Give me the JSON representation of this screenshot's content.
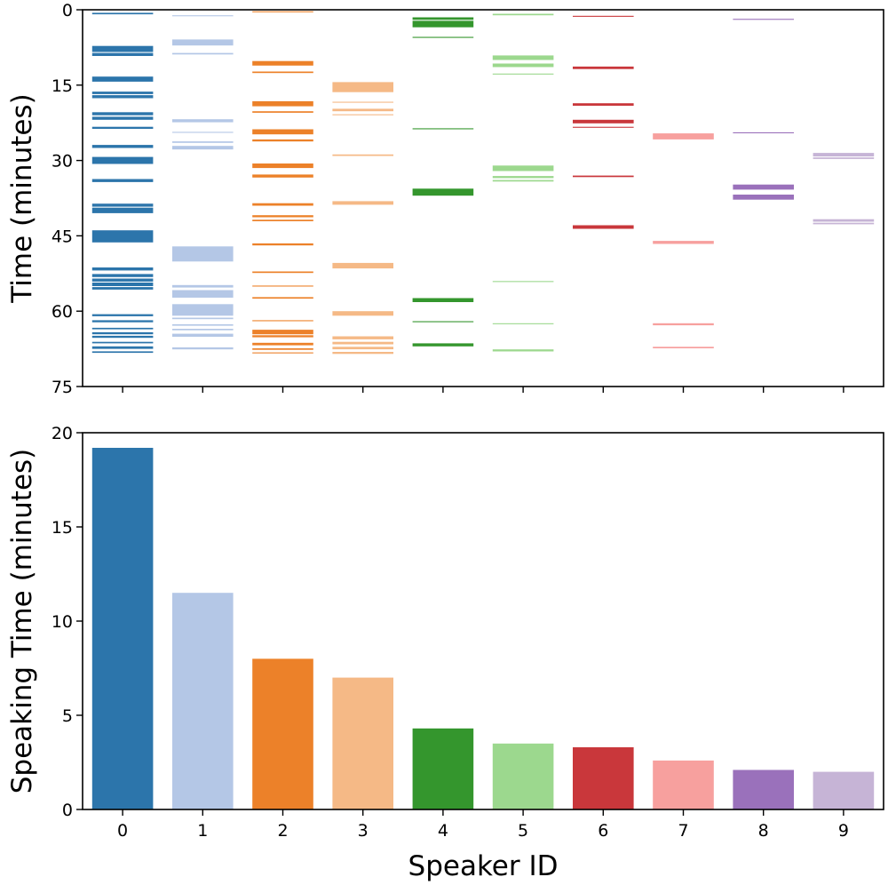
{
  "chart_data": [
    {
      "type": "timeline",
      "ylabel": "Time (minutes)",
      "ylim": [
        75,
        0
      ],
      "yticks": [
        0,
        15,
        30,
        45,
        60,
        75
      ],
      "speakers": [
        0,
        1,
        2,
        3,
        4,
        5,
        6,
        7,
        8,
        9
      ],
      "segments": [
        {
          "speaker": 0,
          "intervals": [
            [
              0.6,
              0.9
            ],
            [
              7.2,
              8.4
            ],
            [
              8.6,
              9.2
            ],
            [
              13.3,
              14.3
            ],
            [
              16.3,
              16.8
            ],
            [
              17.0,
              17.6
            ],
            [
              20.4,
              21.0
            ],
            [
              21.3,
              21.9
            ],
            [
              23.3,
              23.7
            ],
            [
              26.9,
              27.5
            ],
            [
              29.3,
              30.7
            ],
            [
              33.7,
              34.3
            ],
            [
              38.6,
              39.2
            ],
            [
              39.4,
              40.5
            ],
            [
              43.9,
              46.3
            ],
            [
              51.3,
              51.9
            ],
            [
              52.6,
              53.2
            ],
            [
              53.5,
              54.1
            ],
            [
              54.3,
              55.0
            ],
            [
              55.2,
              55.7
            ],
            [
              60.6,
              61.0
            ],
            [
              61.8,
              62.2
            ],
            [
              63.3,
              63.6
            ],
            [
              64.2,
              64.6
            ],
            [
              64.9,
              65.3
            ],
            [
              66.1,
              66.4
            ],
            [
              67.0,
              67.5
            ],
            [
              68.0,
              68.3
            ]
          ]
        },
        {
          "speaker": 1,
          "intervals": [
            [
              1.1,
              1.3
            ],
            [
              5.9,
              7.1
            ],
            [
              8.6,
              8.9
            ],
            [
              21.8,
              22.4
            ],
            [
              24.3,
              24.5
            ],
            [
              26.2,
              26.5
            ],
            [
              27.1,
              27.8
            ],
            [
              47.1,
              50.1
            ],
            [
              54.8,
              55.3
            ],
            [
              55.8,
              57.3
            ],
            [
              58.6,
              60.9
            ],
            [
              61.3,
              61.6
            ],
            [
              62.6,
              62.9
            ],
            [
              63.5,
              63.8
            ],
            [
              64.5,
              65.1
            ],
            [
              67.2,
              67.6
            ]
          ]
        },
        {
          "speaker": 2,
          "intervals": [
            [
              0.3,
              0.5
            ],
            [
              10.2,
              11.1
            ],
            [
              12.3,
              12.6
            ],
            [
              18.2,
              19.2
            ],
            [
              20.2,
              20.5
            ],
            [
              23.8,
              24.8
            ],
            [
              25.8,
              26.2
            ],
            [
              30.6,
              31.5
            ],
            [
              32.8,
              33.4
            ],
            [
              38.5,
              39.0
            ],
            [
              40.9,
              41.3
            ],
            [
              41.8,
              42.1
            ],
            [
              46.5,
              46.9
            ],
            [
              52.1,
              52.4
            ],
            [
              54.9,
              55.1
            ],
            [
              57.2,
              57.5
            ],
            [
              61.8,
              62.0
            ],
            [
              63.7,
              64.6
            ],
            [
              64.8,
              65.2
            ],
            [
              66.3,
              66.8
            ],
            [
              67.4,
              67.7
            ],
            [
              68.2,
              68.4
            ]
          ]
        },
        {
          "speaker": 3,
          "intervals": [
            [
              14.4,
              16.4
            ],
            [
              18.3,
              18.5
            ],
            [
              19.7,
              20.2
            ],
            [
              20.8,
              21.0
            ],
            [
              28.8,
              29.1
            ],
            [
              38.1,
              38.8
            ],
            [
              50.4,
              51.5
            ],
            [
              60.0,
              60.9
            ],
            [
              65.0,
              65.6
            ],
            [
              66.1,
              66.6
            ],
            [
              67.1,
              67.6
            ],
            [
              68.1,
              68.5
            ]
          ]
        },
        {
          "speaker": 4,
          "intervals": [
            [
              1.5,
              2.0
            ],
            [
              2.2,
              3.5
            ],
            [
              5.4,
              5.6
            ],
            [
              23.6,
              23.8
            ],
            [
              35.6,
              37.0
            ],
            [
              57.4,
              58.2
            ],
            [
              62.0,
              62.2
            ],
            [
              66.4,
              67.0
            ]
          ]
        },
        {
          "speaker": 5,
          "intervals": [
            [
              0.8,
              1.1
            ],
            [
              9.1,
              10.0
            ],
            [
              10.7,
              11.4
            ],
            [
              12.7,
              12.9
            ],
            [
              31.0,
              32.1
            ],
            [
              33.1,
              33.5
            ],
            [
              33.9,
              34.2
            ],
            [
              54.0,
              54.2
            ],
            [
              62.4,
              62.6
            ],
            [
              67.6,
              68.0
            ]
          ]
        },
        {
          "speaker": 6,
          "intervals": [
            [
              1.2,
              1.4
            ],
            [
              11.3,
              11.8
            ],
            [
              18.6,
              19.1
            ],
            [
              21.9,
              22.6
            ],
            [
              23.3,
              23.5
            ],
            [
              33.0,
              33.3
            ],
            [
              42.9,
              43.6
            ]
          ]
        },
        {
          "speaker": 7,
          "intervals": [
            [
              24.6,
              25.8
            ],
            [
              46.0,
              46.6
            ],
            [
              62.4,
              62.8
            ],
            [
              67.1,
              67.4
            ]
          ]
        },
        {
          "speaker": 8,
          "intervals": [
            [
              1.8,
              2.0
            ],
            [
              24.4,
              24.6
            ],
            [
              34.8,
              35.8
            ],
            [
              36.8,
              37.8
            ]
          ]
        },
        {
          "speaker": 9,
          "intervals": [
            [
              28.5,
              29.2
            ],
            [
              29.4,
              29.7
            ],
            [
              41.7,
              42.2
            ],
            [
              42.4,
              42.7
            ]
          ]
        }
      ]
    },
    {
      "type": "bar",
      "categories": [
        "0",
        "1",
        "2",
        "3",
        "4",
        "5",
        "6",
        "7",
        "8",
        "9"
      ],
      "values": [
        19.2,
        11.5,
        8.0,
        7.0,
        4.3,
        3.5,
        3.3,
        2.6,
        2.1,
        2.0
      ],
      "xlabel": "Speaker ID",
      "ylabel": "Speaking Time (minutes)",
      "ylim": [
        0,
        20
      ],
      "yticks": [
        0,
        5,
        10,
        15,
        20
      ]
    }
  ],
  "colors": [
    "#2c75ab",
    "#b4c7e6",
    "#ec8129",
    "#f5b986",
    "#34962d",
    "#9cd88e",
    "#c9373b",
    "#f7a09e",
    "#9a71bb",
    "#c6b4d6"
  ]
}
